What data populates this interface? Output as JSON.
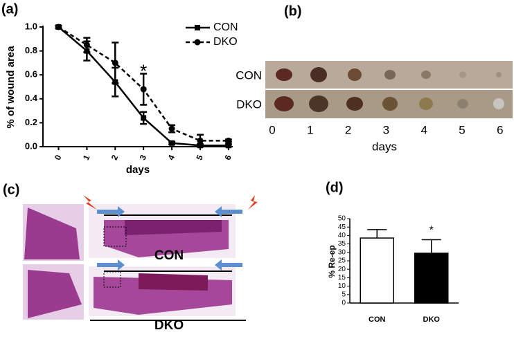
{
  "chart_data": [
    {
      "type": "line",
      "panel": "(a)",
      "xlabel": "days",
      "ylabel": "% of wound area",
      "x": [
        0,
        1,
        2,
        3,
        4,
        5,
        6
      ],
      "xlim": [
        -0.55,
        6.15
      ],
      "xticks": [
        0,
        1,
        2,
        3,
        4,
        5,
        6
      ],
      "ylim": [
        0,
        1
      ],
      "yticks": [
        {
          "value": 0,
          "label": "0.0"
        },
        0.2,
        0.4,
        0.6,
        0.8,
        {
          "value": 1,
          "label": "1.0"
        }
      ],
      "series": [
        {
          "name": "CON",
          "color": "#000000",
          "style": "solid",
          "marker": "square",
          "values": [
            1.0,
            0.8,
            0.54,
            0.24,
            0.03,
            0.01,
            0.01
          ],
          "errors": [
            0.01,
            0.08,
            0.12,
            0.05,
            0.01,
            0.01,
            0.01
          ]
        },
        {
          "name": "DKO",
          "color": "#000000",
          "style": "dashed",
          "marker": "circle",
          "values": [
            1.0,
            0.85,
            0.7,
            0.48,
            0.15,
            0.05,
            0.05
          ],
          "errors": [
            0.01,
            0.06,
            0.17,
            0.13,
            0.03,
            0.05,
            0.01
          ]
        }
      ],
      "annotations": [
        {
          "text": "*",
          "x": 3,
          "y": 0.62
        }
      ]
    },
    {
      "type": "bar",
      "panel": "(d)",
      "ylabel": "% Re-ep",
      "categories": [
        "CON",
        "DKO"
      ],
      "values": [
        38.5,
        29.5
      ],
      "errors": [
        5,
        8
      ],
      "colors": [
        "#ffffff",
        "#000000"
      ],
      "ylim": [
        0,
        50
      ],
      "yticks": [
        0,
        5,
        10,
        15,
        20,
        25,
        30,
        35,
        40,
        45,
        50
      ],
      "annotations": [
        {
          "text": "*",
          "category": 1,
          "y": 43
        }
      ]
    }
  ],
  "images": {
    "b": {
      "panel": "(b)",
      "rows": [
        "CON",
        "DKO"
      ],
      "days": [
        "0",
        "1",
        "2",
        "3",
        "4",
        "5",
        "6"
      ],
      "xlabel": "days"
    },
    "c": {
      "panel": "(c)",
      "labels": [
        "CON",
        "DKO"
      ]
    }
  }
}
